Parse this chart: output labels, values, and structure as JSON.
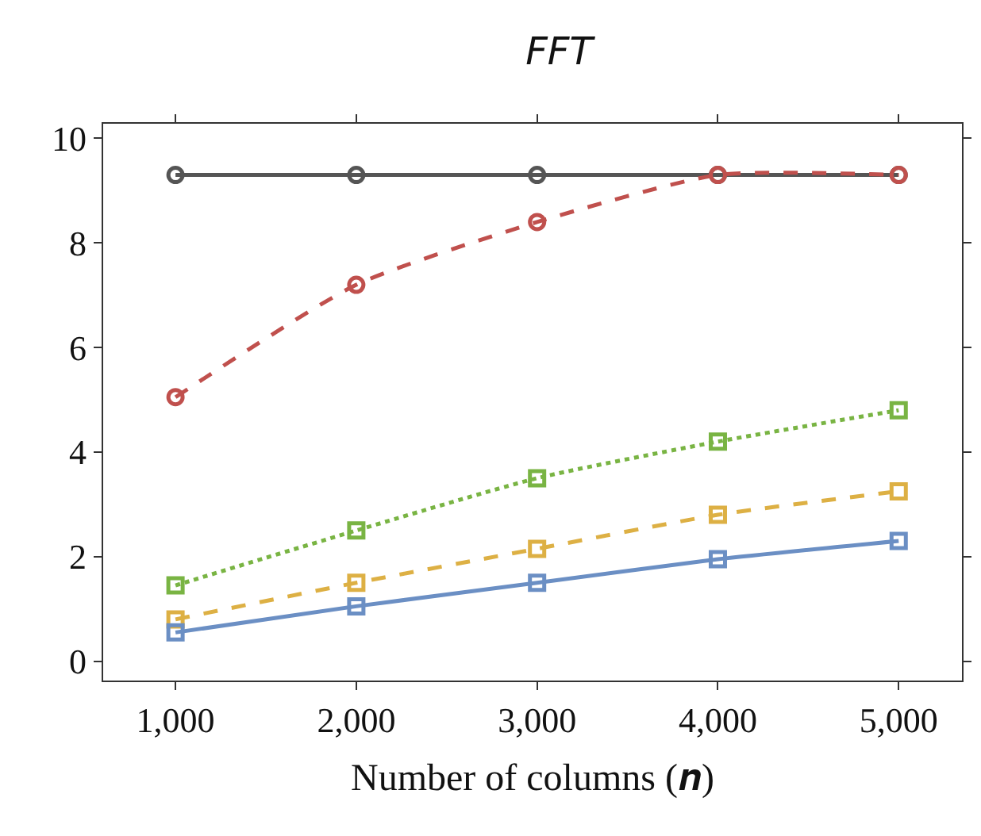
{
  "chart_data": {
    "type": "line",
    "title": "FFT",
    "xlabel": "Number of columns (𝒏)",
    "x": [
      1000,
      2000,
      3000,
      4000,
      5000
    ],
    "xlim": [
      600,
      5350
    ],
    "xticks": [
      {
        "value": 1000,
        "label": "1,000"
      },
      {
        "value": 2000,
        "label": "2,000"
      },
      {
        "value": 3000,
        "label": "3,000"
      },
      {
        "value": 4000,
        "label": "4,000"
      },
      {
        "value": 5000,
        "label": "5,000"
      }
    ],
    "ylim": [
      -0.37,
      10.28
    ],
    "yticks": [
      0,
      2,
      4,
      6,
      8,
      10
    ],
    "series": [
      {
        "color": "#555555",
        "marker": "circle",
        "line_style": "solid",
        "values": [
          9.3,
          9.3,
          9.3,
          9.3,
          9.3
        ]
      },
      {
        "color": "#c0504d",
        "marker": "circle",
        "line_style": "dashed",
        "values": [
          5.05,
          7.2,
          8.4,
          9.3,
          9.3
        ]
      },
      {
        "color": "#79b443",
        "marker": "square",
        "line_style": "dotted",
        "values": [
          1.45,
          2.5,
          3.5,
          4.2,
          4.8
        ]
      },
      {
        "color": "#ddb044",
        "marker": "square",
        "line_style": "dashed",
        "values": [
          0.8,
          1.5,
          2.15,
          2.8,
          3.25
        ]
      },
      {
        "color": "#6b8fc4",
        "marker": "square",
        "line_style": "solid",
        "values": [
          0.55,
          1.05,
          1.5,
          1.95,
          2.3
        ]
      }
    ]
  }
}
